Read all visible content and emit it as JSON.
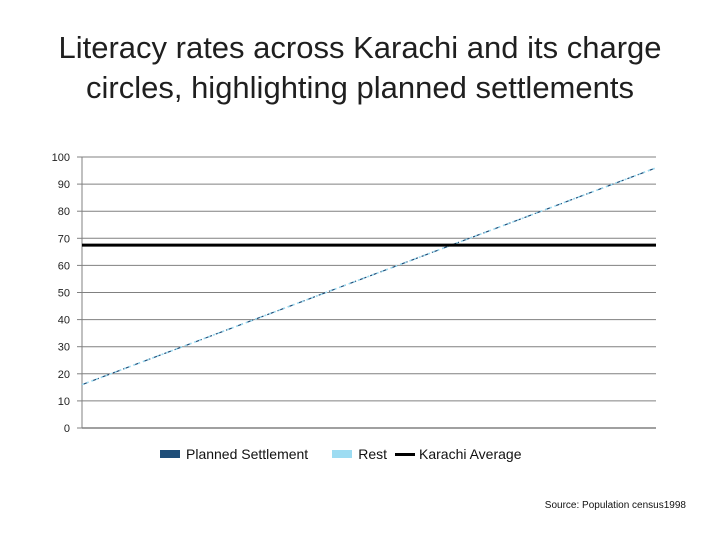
{
  "title": "Literacy rates across Karachi and its charge circles, highlighting planned settlements",
  "source": "Source: Population census1998",
  "colors": {
    "planned": "#1f4e79",
    "rest": "#9ddcf2",
    "average": "#000000",
    "grid": "#808080"
  },
  "chart_data": {
    "type": "line",
    "title": "Literacy rates across Karachi and its charge circles, highlighting planned settlements",
    "ylim": [
      0,
      100
    ],
    "y_ticks": [
      0,
      10,
      20,
      30,
      40,
      50,
      60,
      70,
      80,
      90,
      100
    ],
    "grid": true,
    "legend_position": "bottom",
    "series": [
      {
        "name": "Planned Settlement",
        "style": "dashed",
        "color": "#1f4e79",
        "x": [
          0,
          1
        ],
        "y": [
          16,
          96
        ]
      },
      {
        "name": "Rest",
        "style": "dotted",
        "color": "#9ddcf2",
        "x": [
          0,
          1
        ],
        "y": [
          16,
          96
        ]
      },
      {
        "name": "Karachi Average",
        "style": "solid",
        "color": "#000000",
        "value": 67.5
      }
    ]
  },
  "legend": {
    "planned": "Planned Settlement",
    "rest": "Rest",
    "average": "Karachi Average"
  }
}
